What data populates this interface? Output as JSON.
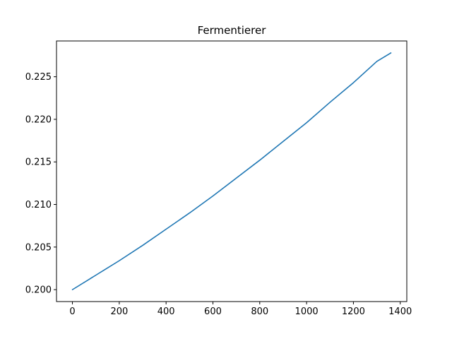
{
  "chart_data": {
    "type": "line",
    "title": "Fermentierer",
    "xlabel": "",
    "ylabel": "",
    "xlim": [
      -68,
      1428
    ],
    "ylim": [
      0.1986,
      0.2292
    ],
    "x_ticks": [
      0,
      200,
      400,
      600,
      800,
      1000,
      1200,
      1400
    ],
    "x_tick_labels": [
      "0",
      "200",
      "400",
      "600",
      "800",
      "1000",
      "1200",
      "1400"
    ],
    "y_ticks": [
      0.2,
      0.205,
      0.21,
      0.215,
      0.22,
      0.225
    ],
    "y_tick_labels": [
      "0.200",
      "0.205",
      "0.210",
      "0.215",
      "0.220",
      "0.225"
    ],
    "grid": false,
    "legend": "none",
    "series": [
      {
        "color": "#1f77b4",
        "x": [
          0,
          100,
          200,
          300,
          400,
          500,
          600,
          700,
          800,
          900,
          1000,
          1100,
          1200,
          1300,
          1360
        ],
        "values": [
          0.2,
          0.2017,
          0.2034,
          0.2052,
          0.2071,
          0.209,
          0.211,
          0.2131,
          0.2152,
          0.2174,
          0.2196,
          0.222,
          0.2243,
          0.2268,
          0.2278
        ]
      }
    ]
  }
}
